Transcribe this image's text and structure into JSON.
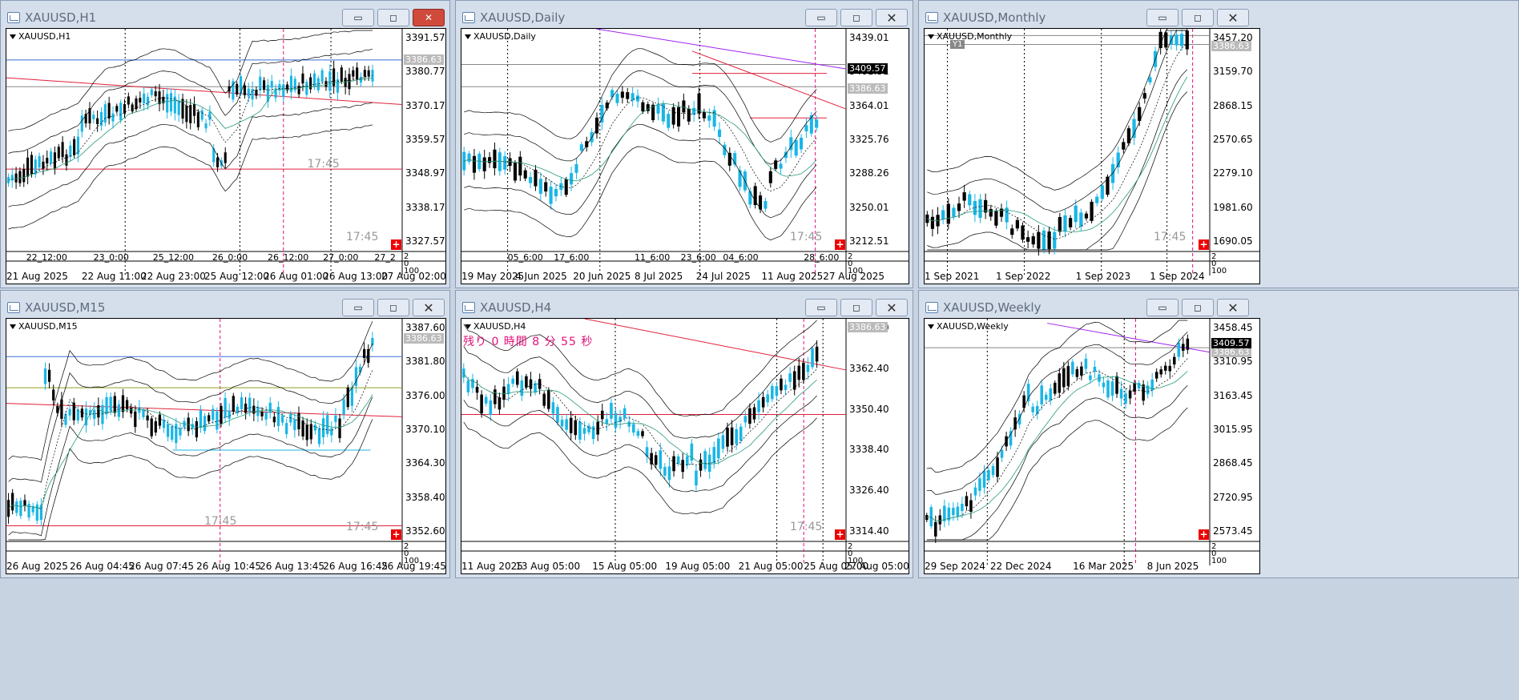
{
  "windows": {
    "w1": {
      "title": "XAUUSD,H1",
      "chart_label": "XAUUSD,H1",
      "yticks": [
        "3391.57",
        "3380.77",
        "3370.17",
        "3359.57",
        "3348.97",
        "3338.17",
        "3327.57"
      ],
      "price_box": "3386.63",
      "mid_labels": [
        "22_12:00",
        "23_0:00",
        "25_12:00",
        "26_0:00",
        "26_12:00",
        "27_0:00",
        "27_2"
      ],
      "xticks": [
        "21 Aug 2025",
        "22 Aug 11:00",
        "22 Aug 23:00",
        "25 Aug 12:00",
        "26 Aug 01:00",
        "26 Aug 13:00",
        "27 Aug 02:00"
      ],
      "timer": "17:45",
      "sub_axis": [
        "2",
        "0",
        "100"
      ]
    },
    "w2": {
      "title": "XAUUSD,Daily",
      "chart_label": "XAUUSD,Daily",
      "yticks": [
        "3439.01",
        "3401.51",
        "3364.01",
        "3325.76",
        "3288.26",
        "3250.01",
        "3212.51"
      ],
      "price_box": "3386.63",
      "price_box2": "3409.57",
      "mid_labels": [
        "05_6:00",
        "17_6:00",
        "11_6:00",
        "23_6:00",
        "04_6:00",
        "28_6:00"
      ],
      "xticks": [
        "19 May 2025",
        "4 Jun 2025",
        "20 Jun 2025",
        "8 Jul 2025",
        "24 Jul 2025",
        "11 Aug 2025",
        "27 Aug 2025"
      ],
      "timer": "17:45",
      "sub_axis": [
        "2",
        "0",
        "100"
      ]
    },
    "w3": {
      "title": "XAUUSD,Monthly",
      "chart_label": "XAUUSD,Monthly",
      "badge": "Y1",
      "yticks": [
        "3457.20",
        "3159.70",
        "2868.15",
        "2570.65",
        "2279.10",
        "1981.60",
        "1690.05"
      ],
      "price_box": "3386.63",
      "xticks": [
        "1 Sep 2021",
        "1 Sep 2022",
        "1 Sep 2023",
        "1 Sep 2024"
      ],
      "timer": "17:45",
      "sub_axis": [
        "2",
        "0",
        "100"
      ]
    },
    "w4": {
      "title": "XAUUSD,M15",
      "chart_label": "XAUUSD,M15",
      "yticks": [
        "3387.60",
        "3381.80",
        "3376.00",
        "3370.10",
        "3364.30",
        "3358.40",
        "3352.60"
      ],
      "price_box": "3386.63",
      "xticks": [
        "26 Aug 2025",
        "26 Aug 04:45",
        "26 Aug 07:45",
        "26 Aug 10:45",
        "26 Aug 13:45",
        "26 Aug 16:45",
        "26 Aug 19:45"
      ],
      "timer": "17:45",
      "sub_axis": [
        "2",
        "0",
        "100"
      ]
    },
    "w5": {
      "title": "XAUUSD,H4",
      "chart_label": "XAUUSD,H4",
      "countdown": "残り 0 時間 8 分 55 秒",
      "yticks": [
        "3374.40",
        "3362.40",
        "3350.40",
        "3338.40",
        "3326.40",
        "3314.40"
      ],
      "price_box": "3386.63",
      "xticks": [
        "11 Aug 2025",
        "13 Aug 05:00",
        "15 Aug 05:00",
        "19 Aug 05:00",
        "21 Aug 05:00",
        "25 Aug 05:00",
        "27 Aug 05:00"
      ],
      "timer": "17:45",
      "sub_axis": [
        "2",
        "0",
        "100"
      ]
    },
    "w6": {
      "title": "XAUUSD,Weekly",
      "chart_label": "XAUUSD,Weekly",
      "yticks": [
        "3458.45",
        "3310.95",
        "3163.45",
        "3015.95",
        "2868.45",
        "2720.95",
        "2573.45"
      ],
      "price_box": "3386.63",
      "price_box2": "3409.57",
      "xticks": [
        "29 Sep 2024",
        "22 Dec 2024",
        "16 Mar 2025",
        "8 Jun 2025"
      ],
      "sub_axis": [
        "2",
        "0",
        "100"
      ]
    }
  },
  "buttons": {
    "minimize": "▭",
    "maximize": "◻",
    "close": "✕"
  },
  "colors": {
    "bg": "#c8d3e1",
    "bull": "#19b6e6",
    "bear": "#000000",
    "redline": "#e0203a",
    "purple": "#a020f0"
  }
}
